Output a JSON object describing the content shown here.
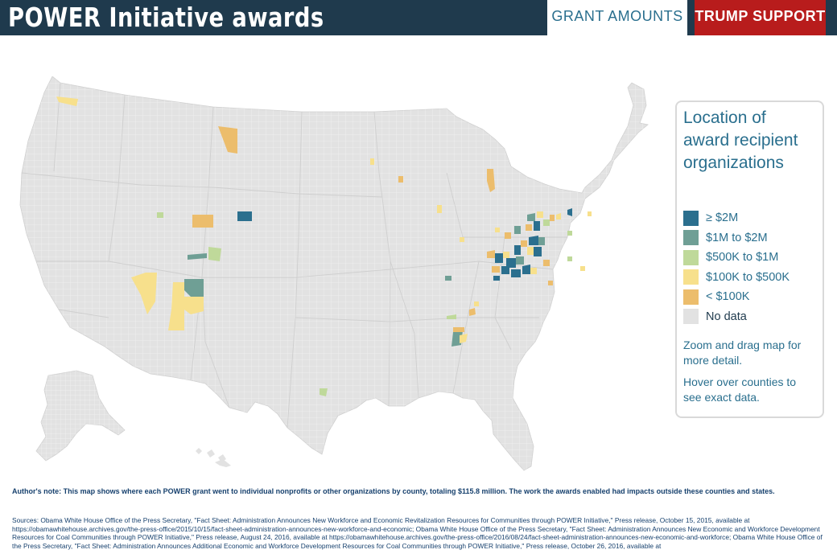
{
  "header": {
    "title": "POWER Initiative awards",
    "tabs": [
      {
        "label": "GRANT AMOUNTS",
        "active": true
      },
      {
        "label": "TRUMP SUPPORT",
        "active": false
      }
    ],
    "colors": {
      "bar": "#1f3a4d",
      "active_tab_text": "#2a6f8e",
      "trump_tab": "#b81c1c"
    }
  },
  "map": {
    "region": "United States counties",
    "base_color": "#e2e2e2",
    "interaction": "zoom-drag-hover"
  },
  "legend": {
    "title": "Location of award recipient organizations",
    "items": [
      {
        "label": "≥ $2M",
        "color": "#2b6f8e"
      },
      {
        "label": "$1M to $2M",
        "color": "#6f9f95"
      },
      {
        "label": "$500K to $1M",
        "color": "#bfd99a"
      },
      {
        "label": "$100K to $500K",
        "color": "#f7e08c"
      },
      {
        "label": "< $100K",
        "color": "#ecbd6c"
      },
      {
        "label": "No data",
        "color": "#e2e2e2"
      }
    ],
    "note_zoom": "Zoom and drag map for more detail.",
    "note_hover": "Hover over counties to see exact data."
  },
  "footer": {
    "author_note": "Author's note: This map shows where each POWER grant went to individual nonprofits or other organizations by county, totaling $115.8 million. The work the awards enabled had impacts outside these counties and states.",
    "sources": "Sources: Obama White House Office of the Press Secretary, \"Fact Sheet: Administration Announces New Workforce and Economic Revitalization Resources for Communities through POWER Initiative,\" Press release, October 15, 2015, available at https://obamawhitehouse.archives.gov/the-press-office/2015/10/15/fact-sheet-administration-announces-new-workforce-and-economic; Obama White House Office of the Press Secretary, \"Fact Sheet: Administration Announces New Economic and Workforce Development Resources for Coal Communities through POWER Initiative,\" Press release, August 24, 2016, available at https://obamawhitehouse.archives.gov/the-press-office/2016/08/24/fact-sheet-administration-announces-new-economic-and-workforce; Obama White House Office of the Press Secretary, \"Fact Sheet: Administration Announces Additional Economic and Workforce Development Resources for Coal Communities through POWER Initiative,\" Press release, October 26, 2016, available at"
  }
}
